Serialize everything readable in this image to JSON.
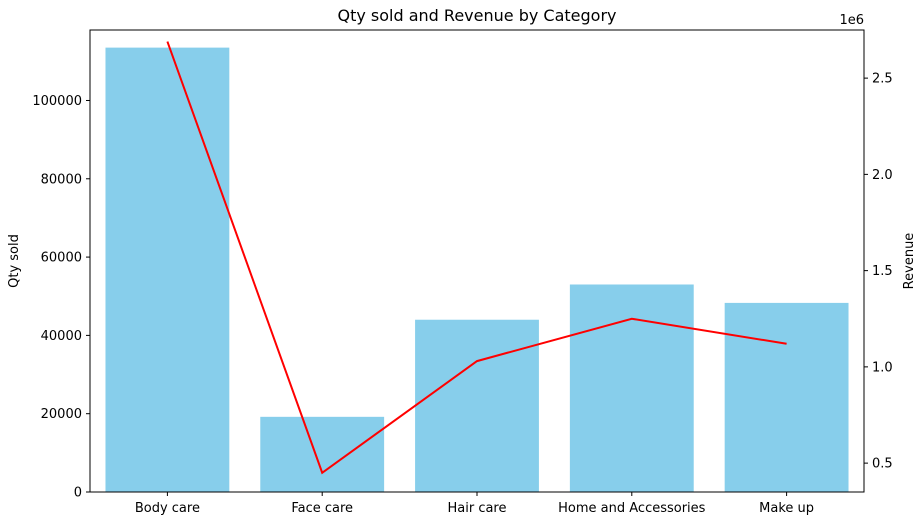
{
  "chart_data": {
    "type": "bar",
    "title": "Qty sold and Revenue by Category",
    "categories": [
      "Body care",
      "Face care",
      "Hair care",
      "Home and Accessories",
      "Make up"
    ],
    "series": [
      {
        "name": "Qty sold",
        "type": "bar",
        "axis": "left",
        "color": "#87CEEB",
        "values": [
          113500,
          19200,
          44000,
          53000,
          48300
        ]
      },
      {
        "name": "Revenue",
        "type": "line",
        "axis": "right",
        "color": "#ff0000",
        "values": [
          2690000,
          450000,
          1030000,
          1250000,
          1120000
        ]
      }
    ],
    "ylabel": "Qty sold",
    "y2label": "Revenue",
    "y2_offset_text": "1e6",
    "ylim": [
      0,
      118000
    ],
    "y2lim": [
      0.35,
      2.75
    ],
    "yticks": [
      0,
      20000,
      40000,
      60000,
      80000,
      100000
    ],
    "y2ticks": [
      0.5,
      1.0,
      1.5,
      2.0,
      2.5
    ],
    "y2_scale": 1000000,
    "grid": false
  }
}
